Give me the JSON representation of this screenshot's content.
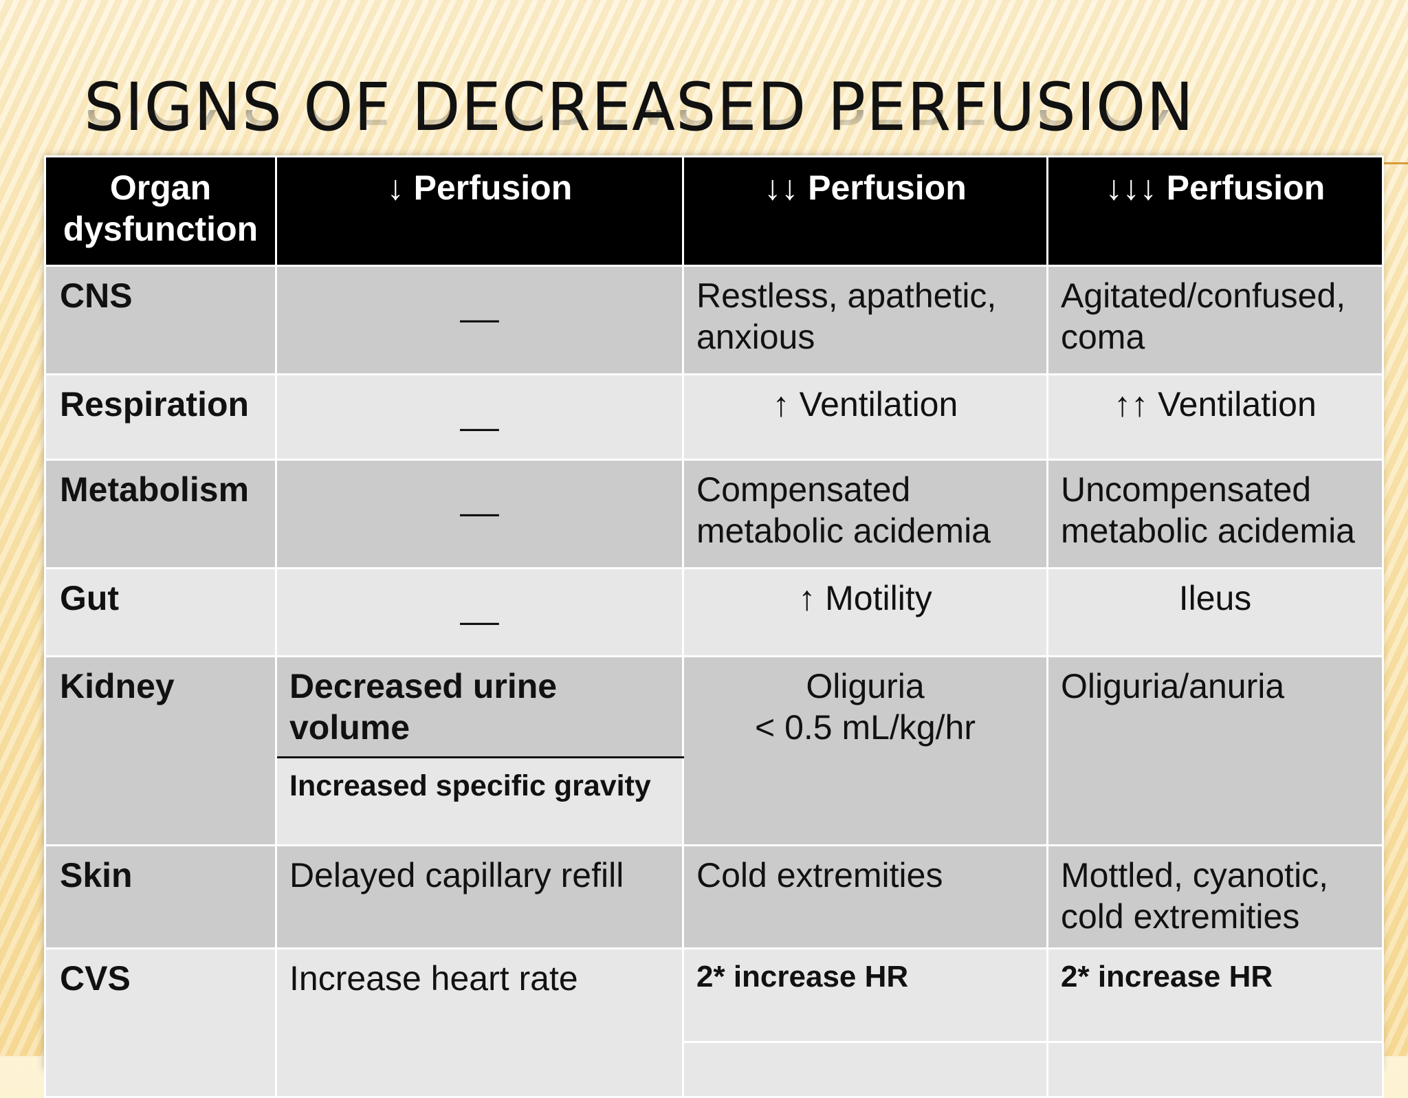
{
  "slide": {
    "title": "SIGNS OF DECREASED PERFUSION"
  },
  "table": {
    "headers": [
      "Organ dysfunction",
      "↓ Perfusion",
      "↓↓ Perfusion",
      "↓↓↓ Perfusion"
    ],
    "rows": {
      "cns": {
        "organ": "CNS",
        "p1": "__",
        "p2": "Restless, apathetic, anxious",
        "p3": "Agitated/confused, coma"
      },
      "respiration": {
        "organ": "Respiration",
        "p1": "__",
        "p2": "↑ Ventilation",
        "p3": "↑↑ Ventilation"
      },
      "metabolism": {
        "organ": "Metabolism",
        "p1": "__",
        "p2": "Compensated metabolic acidemia",
        "p3": "Uncompensated metabolic acidemia"
      },
      "gut": {
        "organ": "Gut",
        "p1": "__",
        "p2": "↑ Motility",
        "p3": "Ileus"
      },
      "kidney": {
        "organ": "Kidney",
        "p1a": "Decreased urine volume",
        "p1b": "Increased specific gravity",
        "p2_line1": "Oliguria",
        "p2_line2": "< 0.5 mL/kg/hr",
        "p3": "Oliguria/anuria"
      },
      "skin": {
        "organ": "Skin",
        "p1": "Delayed capillary refill",
        "p2": "Cold extremities",
        "p3": "Mottled, cyanotic, cold extremities"
      },
      "cvs": {
        "organ": "CVS",
        "p1": "Increase heart rate",
        "p2": "2* increase HR",
        "p3": "2* increase HR"
      }
    }
  }
}
